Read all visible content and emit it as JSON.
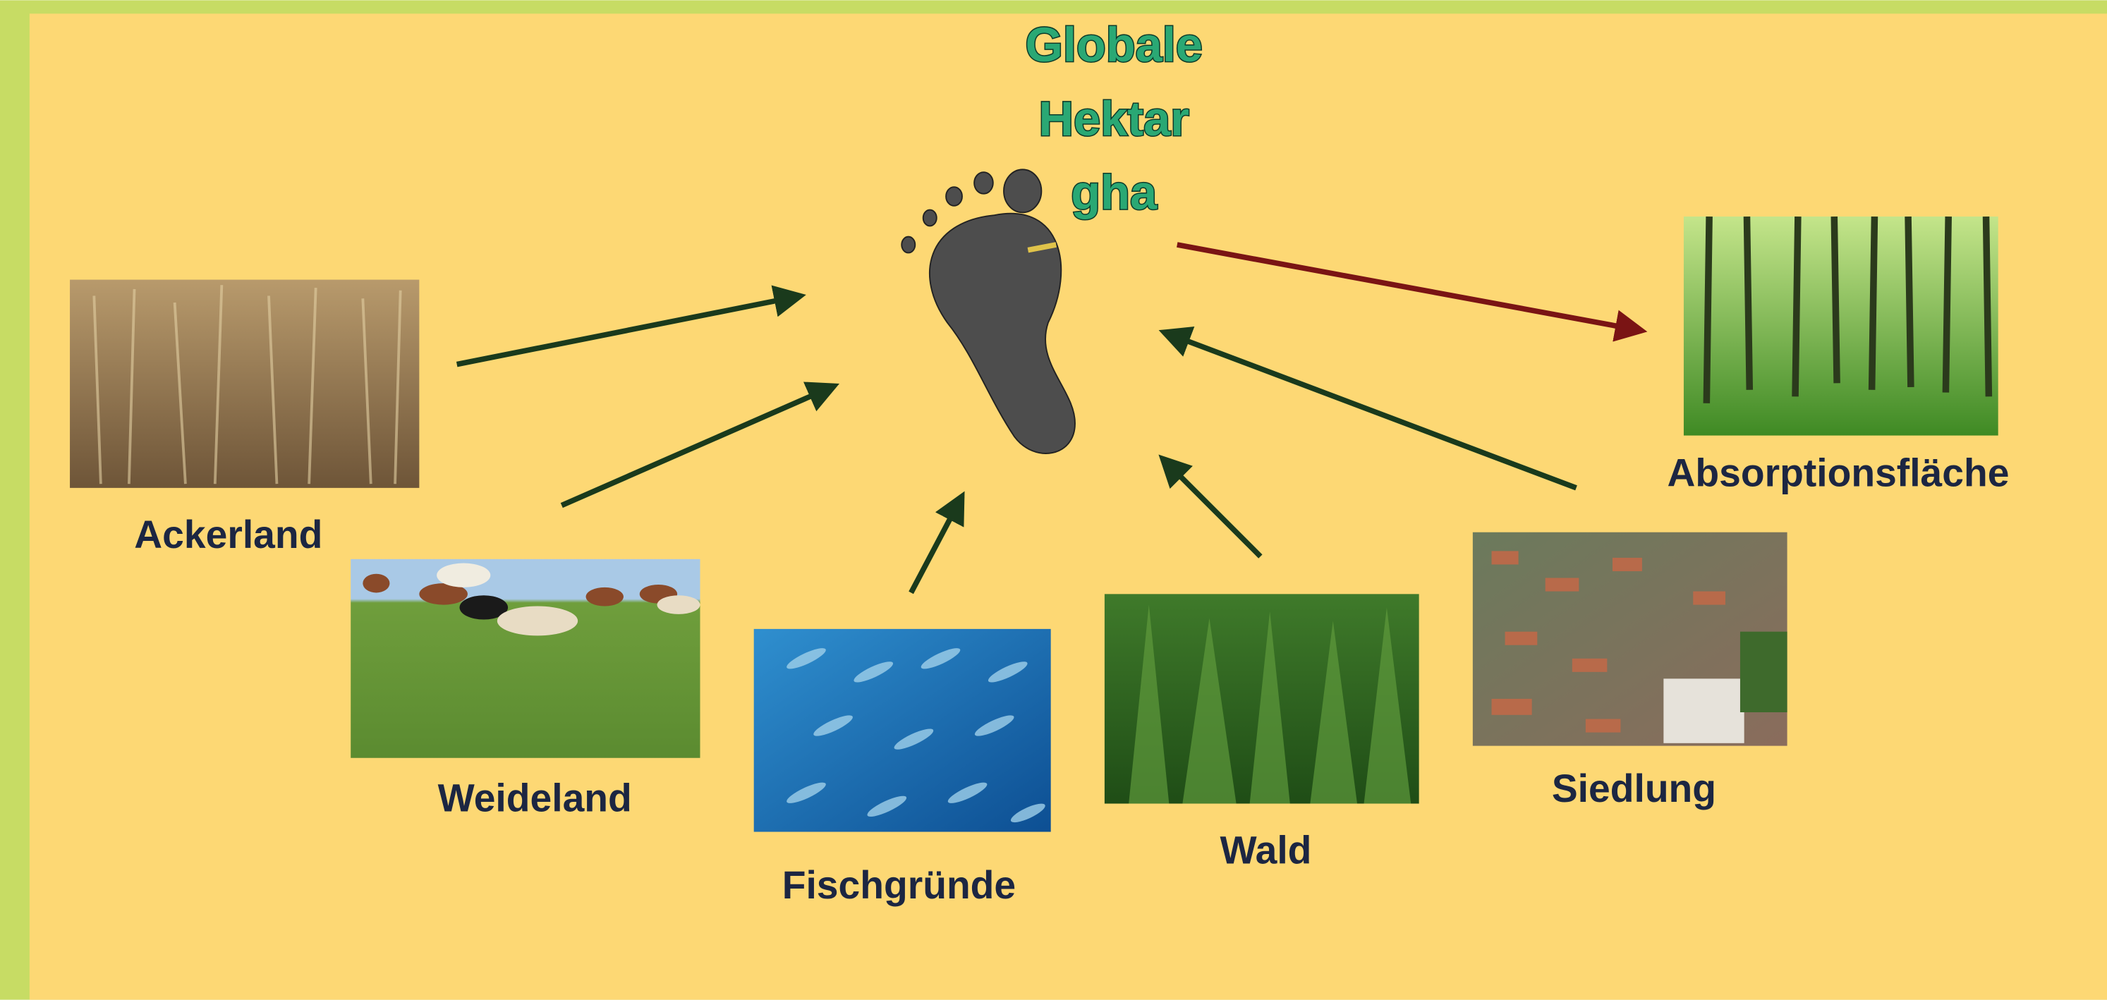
{
  "title": {
    "lines": [
      "Globale",
      "Hektar",
      "gha"
    ]
  },
  "nodes": [
    {
      "label": "Ackerland"
    },
    {
      "label": "Weideland"
    },
    {
      "label": "Fischgründe"
    },
    {
      "label": "Wald"
    },
    {
      "label": "Siedlung"
    },
    {
      "label": "Absorptionsfläche"
    }
  ]
}
